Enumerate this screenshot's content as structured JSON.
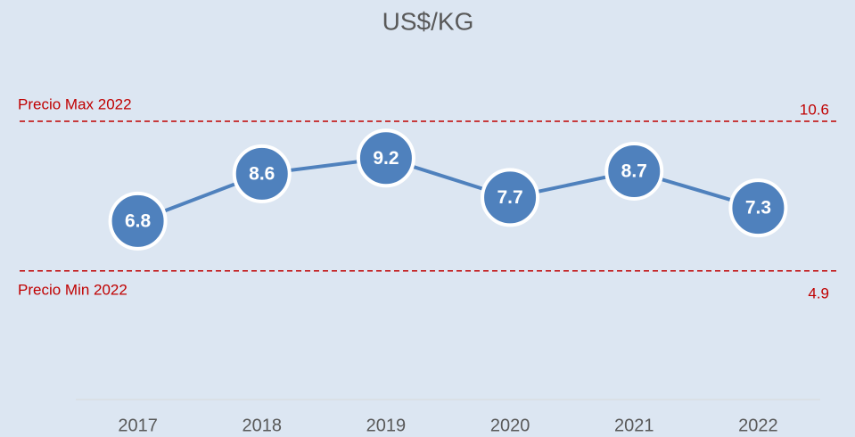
{
  "chart_data": {
    "type": "line",
    "title": "US$/KG",
    "categories": [
      "2017",
      "2018",
      "2019",
      "2020",
      "2021",
      "2022"
    ],
    "series": [
      {
        "name": "US$/KG",
        "color": "#4f81bd",
        "values": [
          6.8,
          8.6,
          9.2,
          7.7,
          8.7,
          7.3
        ]
      }
    ],
    "ylim": [
      0,
      14
    ],
    "reference_lines": [
      {
        "label": "Precio Max 2022",
        "value": 10.6,
        "color": "#c00000"
      },
      {
        "label": "Precio Min 2022",
        "value": 4.9,
        "color": "#c00000"
      }
    ]
  }
}
